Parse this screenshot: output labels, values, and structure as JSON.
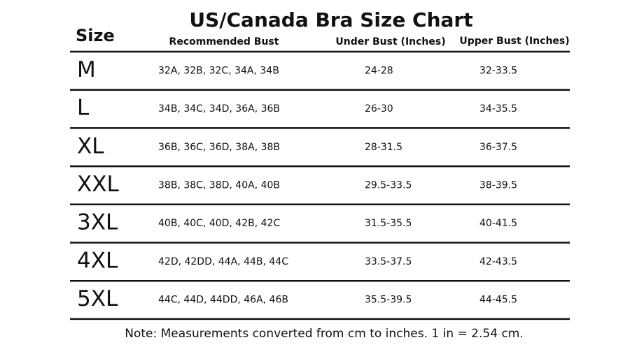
{
  "header": {
    "title": "US/Canada Bra Size Chart"
  },
  "table": {
    "columns": [
      "Size",
      "Recommended Bust",
      "Under Bust (Inches)",
      "Upper Bust (Inches)"
    ],
    "rows": [
      [
        "M",
        "32A, 32B, 32C, 34A, 34B",
        "24-28",
        "32-33.5"
      ],
      [
        "L",
        "34B, 34C, 34D, 36A, 36B",
        "26-30",
        "34-35.5"
      ],
      [
        "XL",
        "36B, 36C, 36D, 38A, 38B",
        "28-31.5",
        "36-37.5"
      ],
      [
        "XXL",
        "38B, 38C, 38D, 40A, 40B",
        "29.5-33.5",
        "38-39.5"
      ],
      [
        "3XL",
        "40B, 40C, 40D, 42B, 42C",
        "31.5-35.5",
        "40-41.5"
      ],
      [
        "4XL",
        "42D, 42DD, 44A, 44B, 44C",
        "33.5-37.5",
        "42-43.5"
      ],
      [
        "5XL",
        "44C, 44D, 44DD, 46A, 46B",
        "35.5-39.5",
        "44-45.5"
      ]
    ]
  },
  "footer": {
    "note": "Note: Measurements converted from cm to inches. 1 in = 2.54 cm."
  }
}
